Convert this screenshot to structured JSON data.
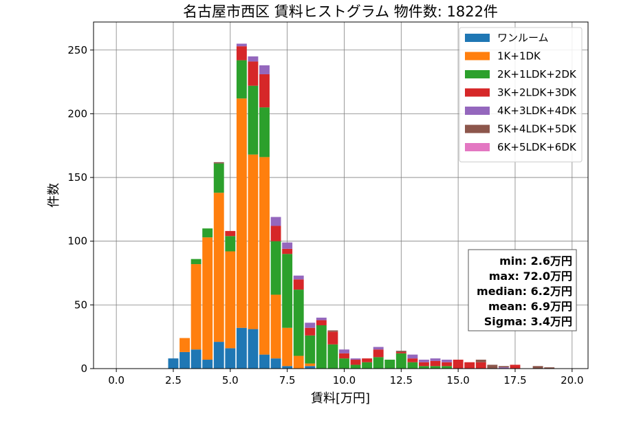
{
  "chart_data": {
    "type": "bar",
    "stacked": true,
    "title": "名古屋市西区 賃料ヒストグラム  物件数: 1822件",
    "xlabel": "賃料[万円]",
    "ylabel": "件数",
    "xlim": [
      -1.0,
      20.7
    ],
    "ylim": [
      0,
      272
    ],
    "xticks": [
      0.0,
      2.5,
      5.0,
      7.5,
      10.0,
      12.5,
      15.0,
      17.5,
      20.0
    ],
    "xtick_labels": [
      "0.0",
      "2.5",
      "5.0",
      "7.5",
      "10.0",
      "12.5",
      "15.0",
      "17.5",
      "20.0"
    ],
    "yticks": [
      0,
      50,
      100,
      150,
      200,
      250
    ],
    "ytick_labels": [
      "0",
      "50",
      "100",
      "150",
      "200",
      "250"
    ],
    "grid": true,
    "legend_position": "top-right",
    "bin_width": 0.5,
    "x": [
      2.5,
      3.0,
      3.5,
      4.0,
      4.5,
      5.0,
      5.5,
      6.0,
      6.5,
      7.0,
      7.5,
      8.0,
      8.5,
      9.0,
      9.5,
      10.0,
      10.5,
      11.0,
      11.5,
      12.0,
      12.5,
      13.0,
      13.5,
      14.0,
      14.5,
      15.0,
      15.5,
      16.0,
      16.5,
      17.0,
      17.5,
      18.0,
      18.5,
      19.0
    ],
    "series": [
      {
        "name": "ワンルーム",
        "color": "#1f77b4",
        "values": [
          8,
          13,
          15,
          7,
          21,
          16,
          32,
          31,
          11,
          8,
          2,
          0,
          2,
          0,
          0,
          0,
          0,
          0,
          0,
          0,
          0,
          0,
          0,
          0,
          0,
          0,
          0,
          0,
          0,
          0,
          0,
          0,
          0,
          0
        ]
      },
      {
        "name": "1K+1DK",
        "color": "#ff7f0e",
        "values": [
          0,
          11,
          67,
          96,
          117,
          76,
          180,
          137,
          155,
          50,
          30,
          10,
          2,
          0,
          0,
          0,
          0,
          0,
          0,
          0,
          0,
          0,
          0,
          0,
          0,
          0,
          0,
          0,
          0,
          0,
          0,
          0,
          0,
          0
        ]
      },
      {
        "name": "2K+1LDK+2DK",
        "color": "#2ca02c",
        "values": [
          0,
          0,
          4,
          7,
          23,
          12,
          30,
          54,
          39,
          42,
          58,
          52,
          22,
          34,
          19,
          8,
          3,
          5,
          9,
          7,
          12,
          5,
          2,
          2,
          2,
          0,
          0,
          0,
          0,
          0,
          0,
          0,
          0,
          0
        ]
      },
      {
        "name": "3K+2LDK+3DK",
        "color": "#d62728",
        "values": [
          0,
          0,
          0,
          0,
          0,
          4,
          11,
          19,
          26,
          12,
          4,
          8,
          6,
          4,
          10,
          4,
          4,
          3,
          6,
          0,
          1,
          3,
          3,
          4,
          3,
          7,
          5,
          5,
          0,
          0,
          3,
          0,
          0,
          0
        ]
      },
      {
        "name": "4K+3LDK+4DK",
        "color": "#9467bd",
        "values": [
          0,
          0,
          0,
          0,
          0,
          0,
          2,
          4,
          7,
          7,
          5,
          3,
          4,
          2,
          0,
          3,
          1,
          0,
          2,
          0,
          0,
          3,
          2,
          2,
          2,
          0,
          0,
          0,
          0,
          1,
          0,
          0,
          0,
          0
        ]
      },
      {
        "name": "5K+4LDK+5DK",
        "color": "#8c564b",
        "values": [
          0,
          0,
          0,
          0,
          1,
          0,
          0,
          0,
          0,
          0,
          0,
          0,
          0,
          0,
          1,
          0,
          0,
          0,
          0,
          0,
          1,
          0,
          0,
          0,
          0,
          0,
          0,
          2,
          3,
          1,
          0,
          0,
          2,
          1
        ]
      },
      {
        "name": "6K+5LDK+6DK",
        "color": "#e377c2",
        "values": [
          0,
          0,
          0,
          0,
          0,
          0,
          0,
          0,
          0,
          0,
          0,
          0,
          0,
          0,
          0,
          0,
          0,
          0,
          0,
          0,
          0,
          0,
          0,
          0,
          0,
          0,
          0,
          0,
          0,
          0,
          0,
          0,
          0,
          0
        ]
      }
    ],
    "stats": [
      "min: 2.6万円",
      "max: 72.0万円",
      "median: 6.2万円",
      "mean: 6.9万円",
      "Sigma: 3.4万円"
    ]
  }
}
